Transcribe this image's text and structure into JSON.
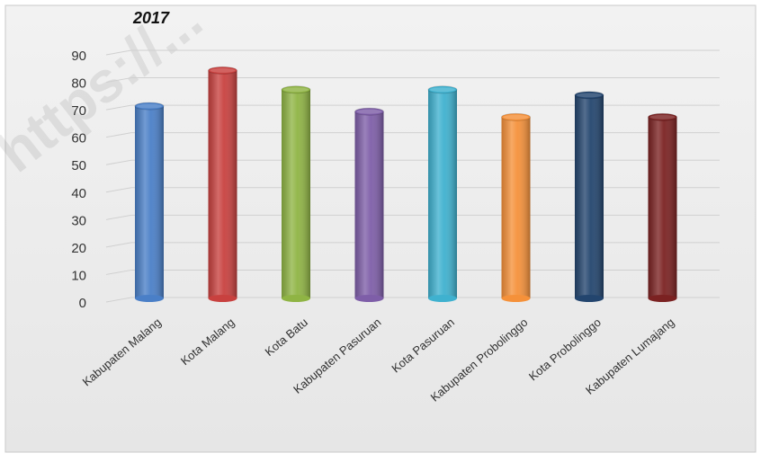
{
  "header": {
    "title_fragment": "2017"
  },
  "watermark": "https://...",
  "chart_data": {
    "type": "bar",
    "title": "2017",
    "categories": [
      "Kabupaten Malang",
      "Kota Malang",
      "Kota Batu",
      "Kabupaten Pasuruan",
      "Kota Pasuruan",
      "Kabupaten Probolinggo",
      "Kota Probolinggo",
      "Kabupaten Lumajang"
    ],
    "values": [
      70,
      83,
      76,
      68,
      76,
      66,
      74,
      66
    ],
    "colors": [
      "#4a7fc7",
      "#c8413f",
      "#8fb444",
      "#7e5ea8",
      "#3fb1cf",
      "#f5913a",
      "#23456e",
      "#7b2222"
    ],
    "ylim": [
      0,
      90
    ],
    "yticks": [
      0,
      10,
      20,
      30,
      40,
      50,
      60,
      70,
      80,
      90
    ],
    "grid": true,
    "xlabel": "",
    "ylabel": ""
  }
}
